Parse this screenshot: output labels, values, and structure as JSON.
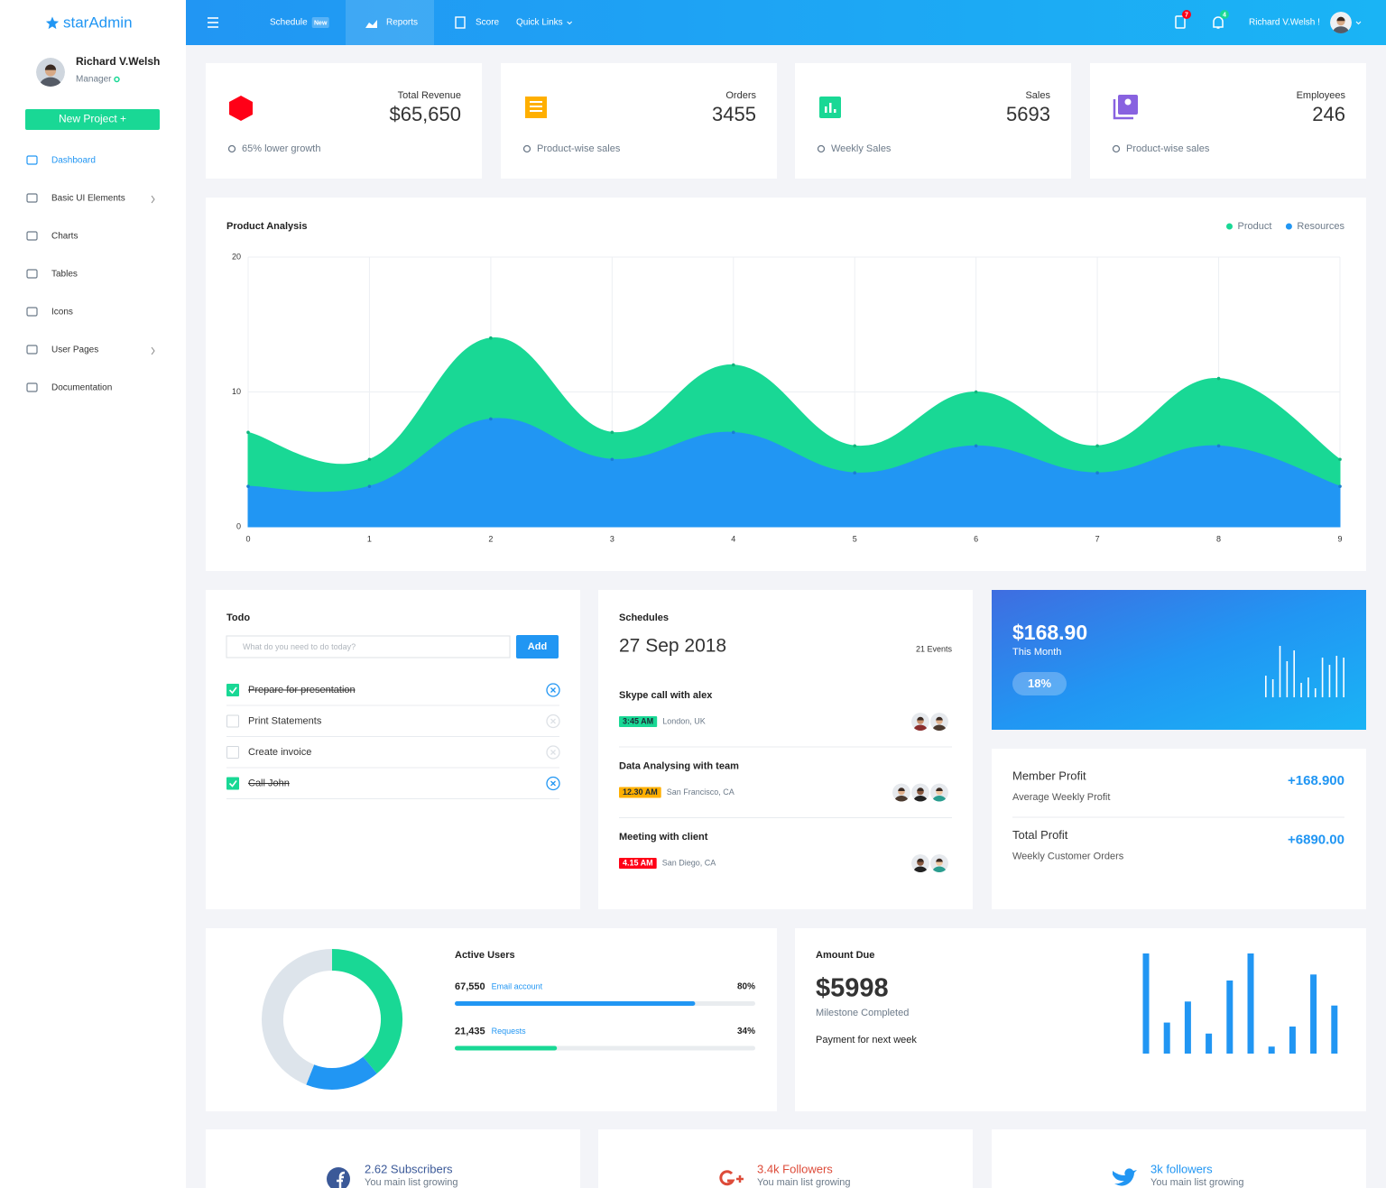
{
  "brand": "starAdmin",
  "sidebar": {
    "user": "Richard V.Welsh",
    "role": "Manager",
    "button": "New Project +",
    "active": 0,
    "nav": [
      {
        "label": "Dashboard"
      },
      {
        "label": "Basic UI Elements",
        "submenu": true
      },
      {
        "label": "Charts"
      },
      {
        "label": "Tables"
      },
      {
        "label": "Icons"
      },
      {
        "label": "User Pages",
        "submenu": true
      },
      {
        "label": "Documentation"
      }
    ]
  },
  "topbar": {
    "active": 1,
    "nav": [
      {
        "label": "Schedule",
        "badge": "New"
      },
      {
        "label": "Reports"
      },
      {
        "label": "Score"
      },
      {
        "label": "Quick Links"
      }
    ],
    "notifications": [
      {
        "count": "7",
        "color": "#ff0017"
      },
      {
        "count": "4",
        "color": "#19d895"
      }
    ],
    "user": "Richard V.Welsh !"
  },
  "stats": [
    {
      "label": "Total Revenue",
      "value": "$65,650",
      "note": "65% lower growth",
      "color": "#ff0017"
    },
    {
      "label": "Orders",
      "value": "3455",
      "note": "Product-wise sales",
      "color": "#ffaf00"
    },
    {
      "label": "Sales",
      "value": "5693",
      "note": "Weekly Sales",
      "color": "#19d895"
    },
    {
      "label": "Employees",
      "value": "246",
      "note": "Product-wise sales",
      "color": "#8862e0"
    }
  ],
  "chart_data": [
    {
      "type": "area",
      "title": "Product Analysis",
      "x": [
        0,
        1,
        2,
        3,
        4,
        5,
        6,
        7,
        8,
        9
      ],
      "xlim": [
        0,
        9
      ],
      "xticks": [
        0,
        1,
        2,
        3,
        4,
        5,
        6,
        7,
        8,
        9
      ],
      "ylim": [
        0,
        20
      ],
      "yticks": [
        0,
        10,
        20
      ],
      "grid": true,
      "legend": "top-right",
      "series": [
        {
          "name": "Product",
          "color": "#19d895",
          "values": [
            7,
            5,
            14,
            7,
            12,
            6,
            10,
            6,
            11,
            5
          ]
        },
        {
          "name": "Resources",
          "color": "#2196f3",
          "values": [
            3,
            3,
            8,
            5,
            7,
            4,
            6,
            4,
            6,
            3
          ]
        }
      ]
    },
    {
      "type": "bar",
      "color": "#ffffff",
      "values": [
        24,
        20,
        57,
        40,
        52,
        16,
        22,
        10,
        44,
        36,
        46,
        44
      ]
    },
    {
      "type": "donut",
      "values": [
        39,
        17,
        44
      ],
      "colors": [
        "#19d895",
        "#2196f3",
        "#dde4eb"
      ]
    },
    {
      "type": "bar",
      "color": "#2196f3",
      "values": [
        100,
        31,
        52,
        20,
        73,
        100,
        7,
        27,
        79,
        48
      ]
    }
  ],
  "todo": {
    "title": "Todo",
    "placeholder": "What do you need to do today?",
    "button": "Add",
    "items": [
      {
        "text": "Prepare for presentation",
        "done": true
      },
      {
        "text": "Print Statements",
        "done": false
      },
      {
        "text": "Create invoice",
        "done": false
      },
      {
        "text": "Call John",
        "done": true
      }
    ]
  },
  "schedules": {
    "title": "Schedules",
    "date": "27 Sep 2018",
    "events_count": "21 Events",
    "events": [
      {
        "title": "Skype call with alex",
        "time": "3:45 AM",
        "location": "London, UK",
        "color": "#19d895",
        "text_color": "#1d2b36",
        "attendees": 2
      },
      {
        "title": "Data Analysing with team",
        "time": "12.30 AM",
        "location": "San Francisco, CA",
        "color": "#ffaf00",
        "text_color": "#1d2b36",
        "attendees": 3
      },
      {
        "title": "Meeting with client",
        "time": "4.15 AM",
        "location": "San Diego, CA",
        "color": "#ff0017",
        "text_color": "#ffffff",
        "attendees": 2
      }
    ]
  },
  "revenue": {
    "value": "$168.90",
    "period": "This Month",
    "change": "18%"
  },
  "profit": [
    {
      "title": "Member Profit",
      "subtitle": "Average Weekly Profit",
      "value": "+168.900"
    },
    {
      "title": "Total Profit",
      "subtitle": "Weekly Customer Orders",
      "value": "+6890.00"
    }
  ],
  "active_users": {
    "title": "Active Users",
    "rows": [
      {
        "count": "67,550",
        "label": "Email account",
        "value": 80,
        "value_label": "80%",
        "color": "#2196f3"
      },
      {
        "count": "21,435",
        "label": "Requests",
        "value": 34,
        "value_label": "34%",
        "color": "#19d895"
      }
    ]
  },
  "amount_due": {
    "title": "Amount Due",
    "value": "$5998",
    "status": "Milestone Completed",
    "note": "Payment for next week"
  },
  "social": [
    {
      "count": "2.62 Subscribers",
      "note": "You main list growing",
      "color": "#3b5998"
    },
    {
      "count": "3.4k Followers",
      "note": "You main list growing",
      "color": "#dd4b39"
    },
    {
      "count": "3k followers",
      "note": "You main list growing",
      "color": "#2196f3"
    }
  ]
}
